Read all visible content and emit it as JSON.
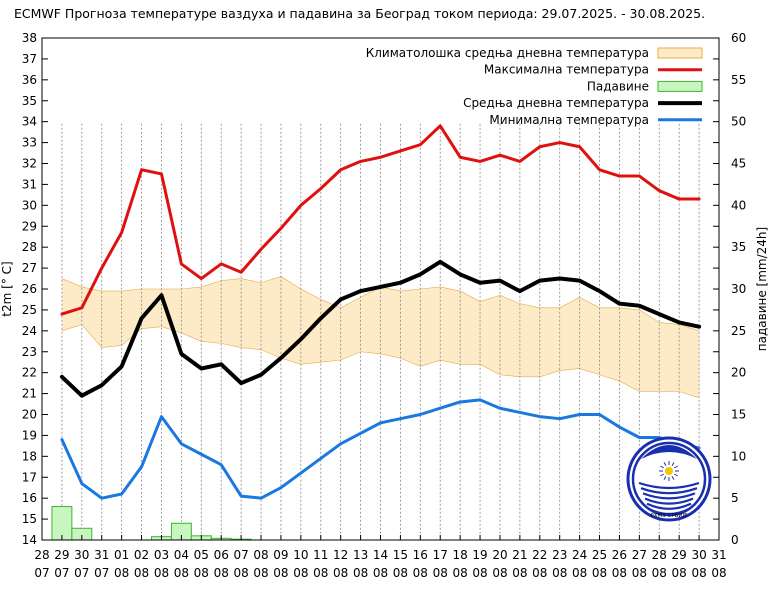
{
  "chart_data": {
    "type": "line",
    "title": "ECMWF Прогноза температуре ваздуха и падавина за Београд током периода: 29.07.2025. - 30.08.2025.",
    "ylabel": "t2m [° C]",
    "y2label": "падавине [mm/24h]",
    "ylim": [
      14,
      38
    ],
    "y2lim": [
      0,
      60
    ],
    "yticks": [
      14,
      15,
      16,
      17,
      18,
      19,
      20,
      21,
      22,
      23,
      24,
      25,
      26,
      27,
      28,
      29,
      30,
      31,
      32,
      33,
      34,
      35,
      36,
      37,
      38
    ],
    "y2ticks": [
      0,
      5,
      10,
      15,
      20,
      25,
      30,
      35,
      40,
      45,
      50,
      55,
      60
    ],
    "xticks": [
      {
        "d": "28",
        "m": "07"
      },
      {
        "d": "29",
        "m": "07"
      },
      {
        "d": "30",
        "m": "07"
      },
      {
        "d": "31",
        "m": "07"
      },
      {
        "d": "01",
        "m": "08"
      },
      {
        "d": "02",
        "m": "08"
      },
      {
        "d": "03",
        "m": "08"
      },
      {
        "d": "04",
        "m": "08"
      },
      {
        "d": "05",
        "m": "08"
      },
      {
        "d": "06",
        "m": "08"
      },
      {
        "d": "07",
        "m": "08"
      },
      {
        "d": "08",
        "m": "08"
      },
      {
        "d": "09",
        "m": "08"
      },
      {
        "d": "10",
        "m": "08"
      },
      {
        "d": "11",
        "m": "08"
      },
      {
        "d": "12",
        "m": "08"
      },
      {
        "d": "13",
        "m": "08"
      },
      {
        "d": "14",
        "m": "08"
      },
      {
        "d": "15",
        "m": "08"
      },
      {
        "d": "16",
        "m": "08"
      },
      {
        "d": "17",
        "m": "08"
      },
      {
        "d": "18",
        "m": "08"
      },
      {
        "d": "19",
        "m": "08"
      },
      {
        "d": "20",
        "m": "08"
      },
      {
        "d": "21",
        "m": "08"
      },
      {
        "d": "22",
        "m": "08"
      },
      {
        "d": "23",
        "m": "08"
      },
      {
        "d": "24",
        "m": "08"
      },
      {
        "d": "25",
        "m": "08"
      },
      {
        "d": "26",
        "m": "08"
      },
      {
        "d": "27",
        "m": "08"
      },
      {
        "d": "28",
        "m": "08"
      },
      {
        "d": "29",
        "m": "08"
      },
      {
        "d": "30",
        "m": "08"
      },
      {
        "d": "31",
        "m": "08"
      }
    ],
    "legend": [
      {
        "key": "clim",
        "label": "Климатолошка средња дневна температура"
      },
      {
        "key": "max",
        "label": "Максимална температура"
      },
      {
        "key": "precip",
        "label": "Падавине"
      },
      {
        "key": "mean",
        "label": "Средња дневна температура"
      },
      {
        "key": "min",
        "label": "Минимална температура"
      }
    ],
    "climatology": {
      "day_index": [
        1,
        2,
        3,
        4,
        5,
        6,
        7,
        8,
        9,
        10,
        11,
        12,
        13,
        14,
        15,
        16,
        17,
        18,
        19,
        20,
        21,
        22,
        23,
        24,
        25,
        26,
        27,
        28,
        29,
        30,
        31,
        32,
        33
      ],
      "upper": [
        26.5,
        26.1,
        25.9,
        25.9,
        26.0,
        26.0,
        26.0,
        26.1,
        26.4,
        26.5,
        26.3,
        26.6,
        26.0,
        25.5,
        25.1,
        25.6,
        26.1,
        25.9,
        26.0,
        26.1,
        25.9,
        25.4,
        25.7,
        25.3,
        25.1,
        25.1,
        25.6,
        25.1,
        25.1,
        25.0,
        24.4,
        24.3,
        24.0
      ],
      "lower": [
        24.0,
        24.3,
        23.2,
        23.3,
        24.1,
        24.2,
        23.9,
        23.5,
        23.4,
        23.2,
        23.1,
        22.7,
        22.4,
        22.5,
        22.6,
        23.0,
        22.9,
        22.7,
        22.3,
        22.6,
        22.4,
        22.4,
        21.9,
        21.8,
        21.8,
        22.1,
        22.2,
        21.9,
        21.6,
        21.1,
        21.1,
        21.1,
        20.8
      ]
    },
    "series": [
      {
        "name": "Максимална температура",
        "key": "max",
        "color": "#e01010",
        "x": [
          1,
          2,
          3,
          4,
          5,
          6,
          7,
          8,
          9,
          10,
          11,
          12,
          13,
          14,
          15,
          16,
          17,
          18,
          19,
          20,
          21,
          22,
          23,
          24,
          25,
          26,
          27,
          28,
          29,
          30,
          31,
          32,
          33
        ],
        "values": [
          24.8,
          25.1,
          27.0,
          28.7,
          31.7,
          31.5,
          27.2,
          26.5,
          27.2,
          26.8,
          27.9,
          28.9,
          30.0,
          30.8,
          31.7,
          32.1,
          32.3,
          32.6,
          32.9,
          33.8,
          32.3,
          32.1,
          32.4,
          32.1,
          32.8,
          33.0,
          32.8,
          31.7,
          31.4,
          31.4,
          30.7,
          30.3,
          30.3
        ]
      },
      {
        "name": "Средња дневна температура",
        "key": "mean",
        "color": "#000000",
        "x": [
          1,
          2,
          3,
          4,
          5,
          6,
          7,
          8,
          9,
          10,
          11,
          12,
          13,
          14,
          15,
          16,
          17,
          18,
          19,
          20,
          21,
          22,
          23,
          24,
          25,
          26,
          27,
          28,
          29,
          30,
          31,
          32,
          33
        ],
        "values": [
          21.8,
          20.9,
          21.4,
          22.3,
          24.6,
          25.7,
          22.9,
          22.2,
          22.4,
          21.5,
          21.9,
          22.7,
          23.6,
          24.6,
          25.5,
          25.9,
          26.1,
          26.3,
          26.7,
          27.3,
          26.7,
          26.3,
          26.4,
          25.9,
          26.4,
          26.5,
          26.4,
          25.9,
          25.3,
          25.2,
          24.8,
          24.4,
          24.2
        ]
      },
      {
        "name": "Минимална температура",
        "key": "min",
        "color": "#1a78e0",
        "x": [
          1,
          2,
          3,
          4,
          5,
          6,
          7,
          8,
          9,
          10,
          11,
          12,
          13,
          14,
          15,
          16,
          17,
          18,
          19,
          20,
          21,
          22,
          23,
          24,
          25,
          26,
          27,
          28,
          29,
          30,
          31,
          32,
          33
        ],
        "values": [
          18.8,
          16.7,
          16.0,
          16.2,
          17.5,
          19.9,
          18.6,
          18.1,
          17.6,
          16.1,
          16.0,
          16.5,
          17.2,
          17.9,
          18.6,
          19.1,
          19.6,
          19.8,
          20.0,
          20.3,
          20.6,
          20.7,
          20.3,
          20.1,
          19.9,
          19.8,
          20.0,
          20.0,
          19.4,
          18.9,
          18.9,
          18.6,
          18.4
        ]
      }
    ],
    "precipitation": {
      "name": "Падавине",
      "day_index": [
        1,
        2,
        6,
        7,
        8,
        9,
        10
      ],
      "values": [
        4.0,
        1.4,
        0.4,
        2.0,
        0.5,
        0.2,
        0.1
      ]
    },
    "colors": {
      "clim_fill": "#fdebc8",
      "clim_edge": "#e8a84a",
      "precip_fill": "#c8f5c0",
      "precip_edge": "#3ab82c",
      "grid": "#888888"
    },
    "logo": {
      "name": "meteorological-service-emblem",
      "text": "РХМЗ СРБИЈЕ"
    }
  }
}
